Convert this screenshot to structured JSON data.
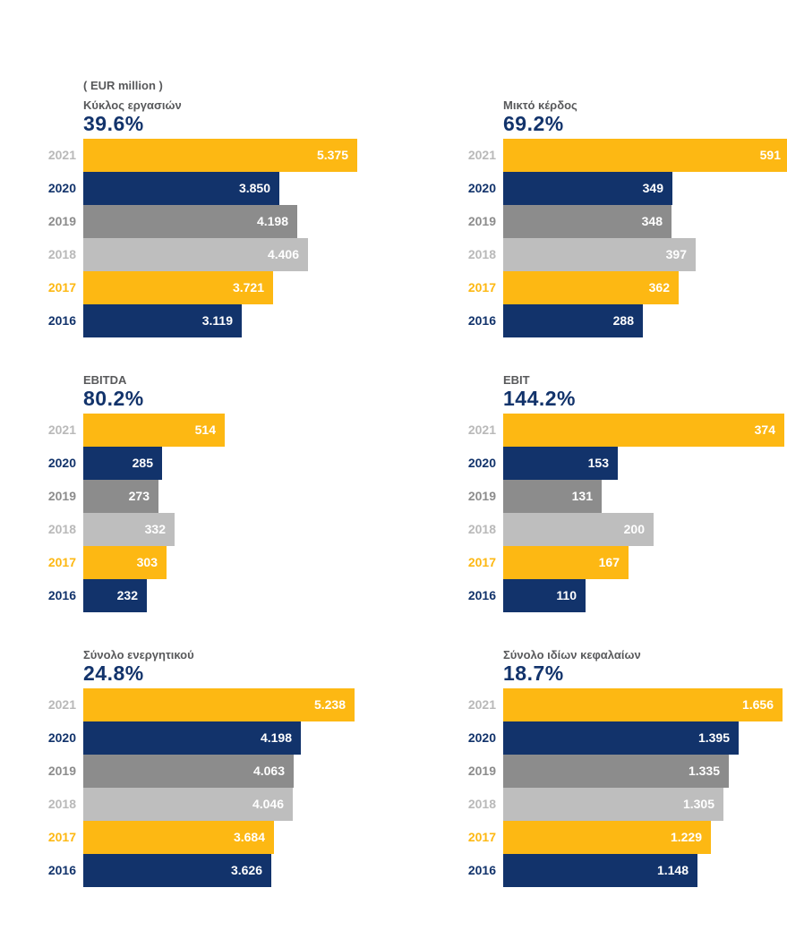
{
  "unit_label": "( EUR million )",
  "year_colors": {
    "2021": {
      "bar": "#fdb813",
      "text": "#b9b9b9"
    },
    "2020": {
      "bar": "#12336b",
      "text": "#12336b"
    },
    "2019": {
      "bar": "#8c8c8c",
      "text": "#8c8c8c"
    },
    "2018": {
      "bar": "#bebebe",
      "text": "#b9b9b9"
    },
    "2017": {
      "bar": "#fdb813",
      "text": "#fdb813"
    },
    "2016": {
      "bar": "#12336b",
      "text": "#12336b"
    }
  },
  "chart_data": [
    {
      "type": "bar",
      "title": "Κύκλος εργασιών",
      "change": "39.6%",
      "categories": [
        "2021",
        "2020",
        "2019",
        "2018",
        "2017",
        "2016"
      ],
      "values": [
        5375,
        3850,
        4198,
        4406,
        3721,
        3119
      ],
      "value_labels": [
        "5.375",
        "3.850",
        "4.198",
        "4.406",
        "3.721",
        "3.119"
      ],
      "xlim": [
        0,
        5520
      ]
    },
    {
      "type": "bar",
      "title": "Μικτό κέρδος",
      "change": "69.2%",
      "categories": [
        "2021",
        "2020",
        "2019",
        "2018",
        "2017",
        "2016"
      ],
      "values": [
        591,
        349,
        348,
        397,
        362,
        288
      ],
      "value_labels": [
        "591",
        "349",
        "348",
        "397",
        "362",
        "288"
      ],
      "xlim": [
        0,
        580
      ]
    },
    {
      "type": "bar",
      "title": "EBITDA",
      "change": "80.2%",
      "categories": [
        "2021",
        "2020",
        "2019",
        "2018",
        "2017",
        "2016"
      ],
      "values": [
        514,
        285,
        273,
        332,
        303,
        232
      ],
      "value_labels": [
        "514",
        "285",
        "273",
        "332",
        "303",
        "232"
      ],
      "xlim": [
        0,
        1020
      ]
    },
    {
      "type": "bar",
      "title": "EBIT",
      "change": "144.2%",
      "categories": [
        "2021",
        "2020",
        "2019",
        "2018",
        "2017",
        "2016"
      ],
      "values": [
        374,
        153,
        131,
        200,
        167,
        110
      ],
      "value_labels": [
        "374",
        "153",
        "131",
        "200",
        "167",
        "110"
      ],
      "xlim": [
        0,
        374
      ]
    },
    {
      "type": "bar",
      "title": "Σύνολο ενεργητικού",
      "change": "24.8%",
      "categories": [
        "2021",
        "2020",
        "2019",
        "2018",
        "2017",
        "2016"
      ],
      "values": [
        5238,
        4198,
        4063,
        4046,
        3684,
        3626
      ],
      "value_labels": [
        "5.238",
        "4.198",
        "4.063",
        "4.046",
        "3.684",
        "3.626"
      ],
      "xlim": [
        0,
        5430
      ]
    },
    {
      "type": "bar",
      "title": "Σύνολο ιδίων κεφαλαίων",
      "change": "18.7%",
      "categories": [
        "2021",
        "2020",
        "2019",
        "2018",
        "2017",
        "2016"
      ],
      "values": [
        1656,
        1395,
        1335,
        1305,
        1229,
        1148
      ],
      "value_labels": [
        "1.656",
        "1.395",
        "1.335",
        "1.305",
        "1.229",
        "1.148"
      ],
      "xlim": [
        0,
        1664
      ]
    }
  ]
}
